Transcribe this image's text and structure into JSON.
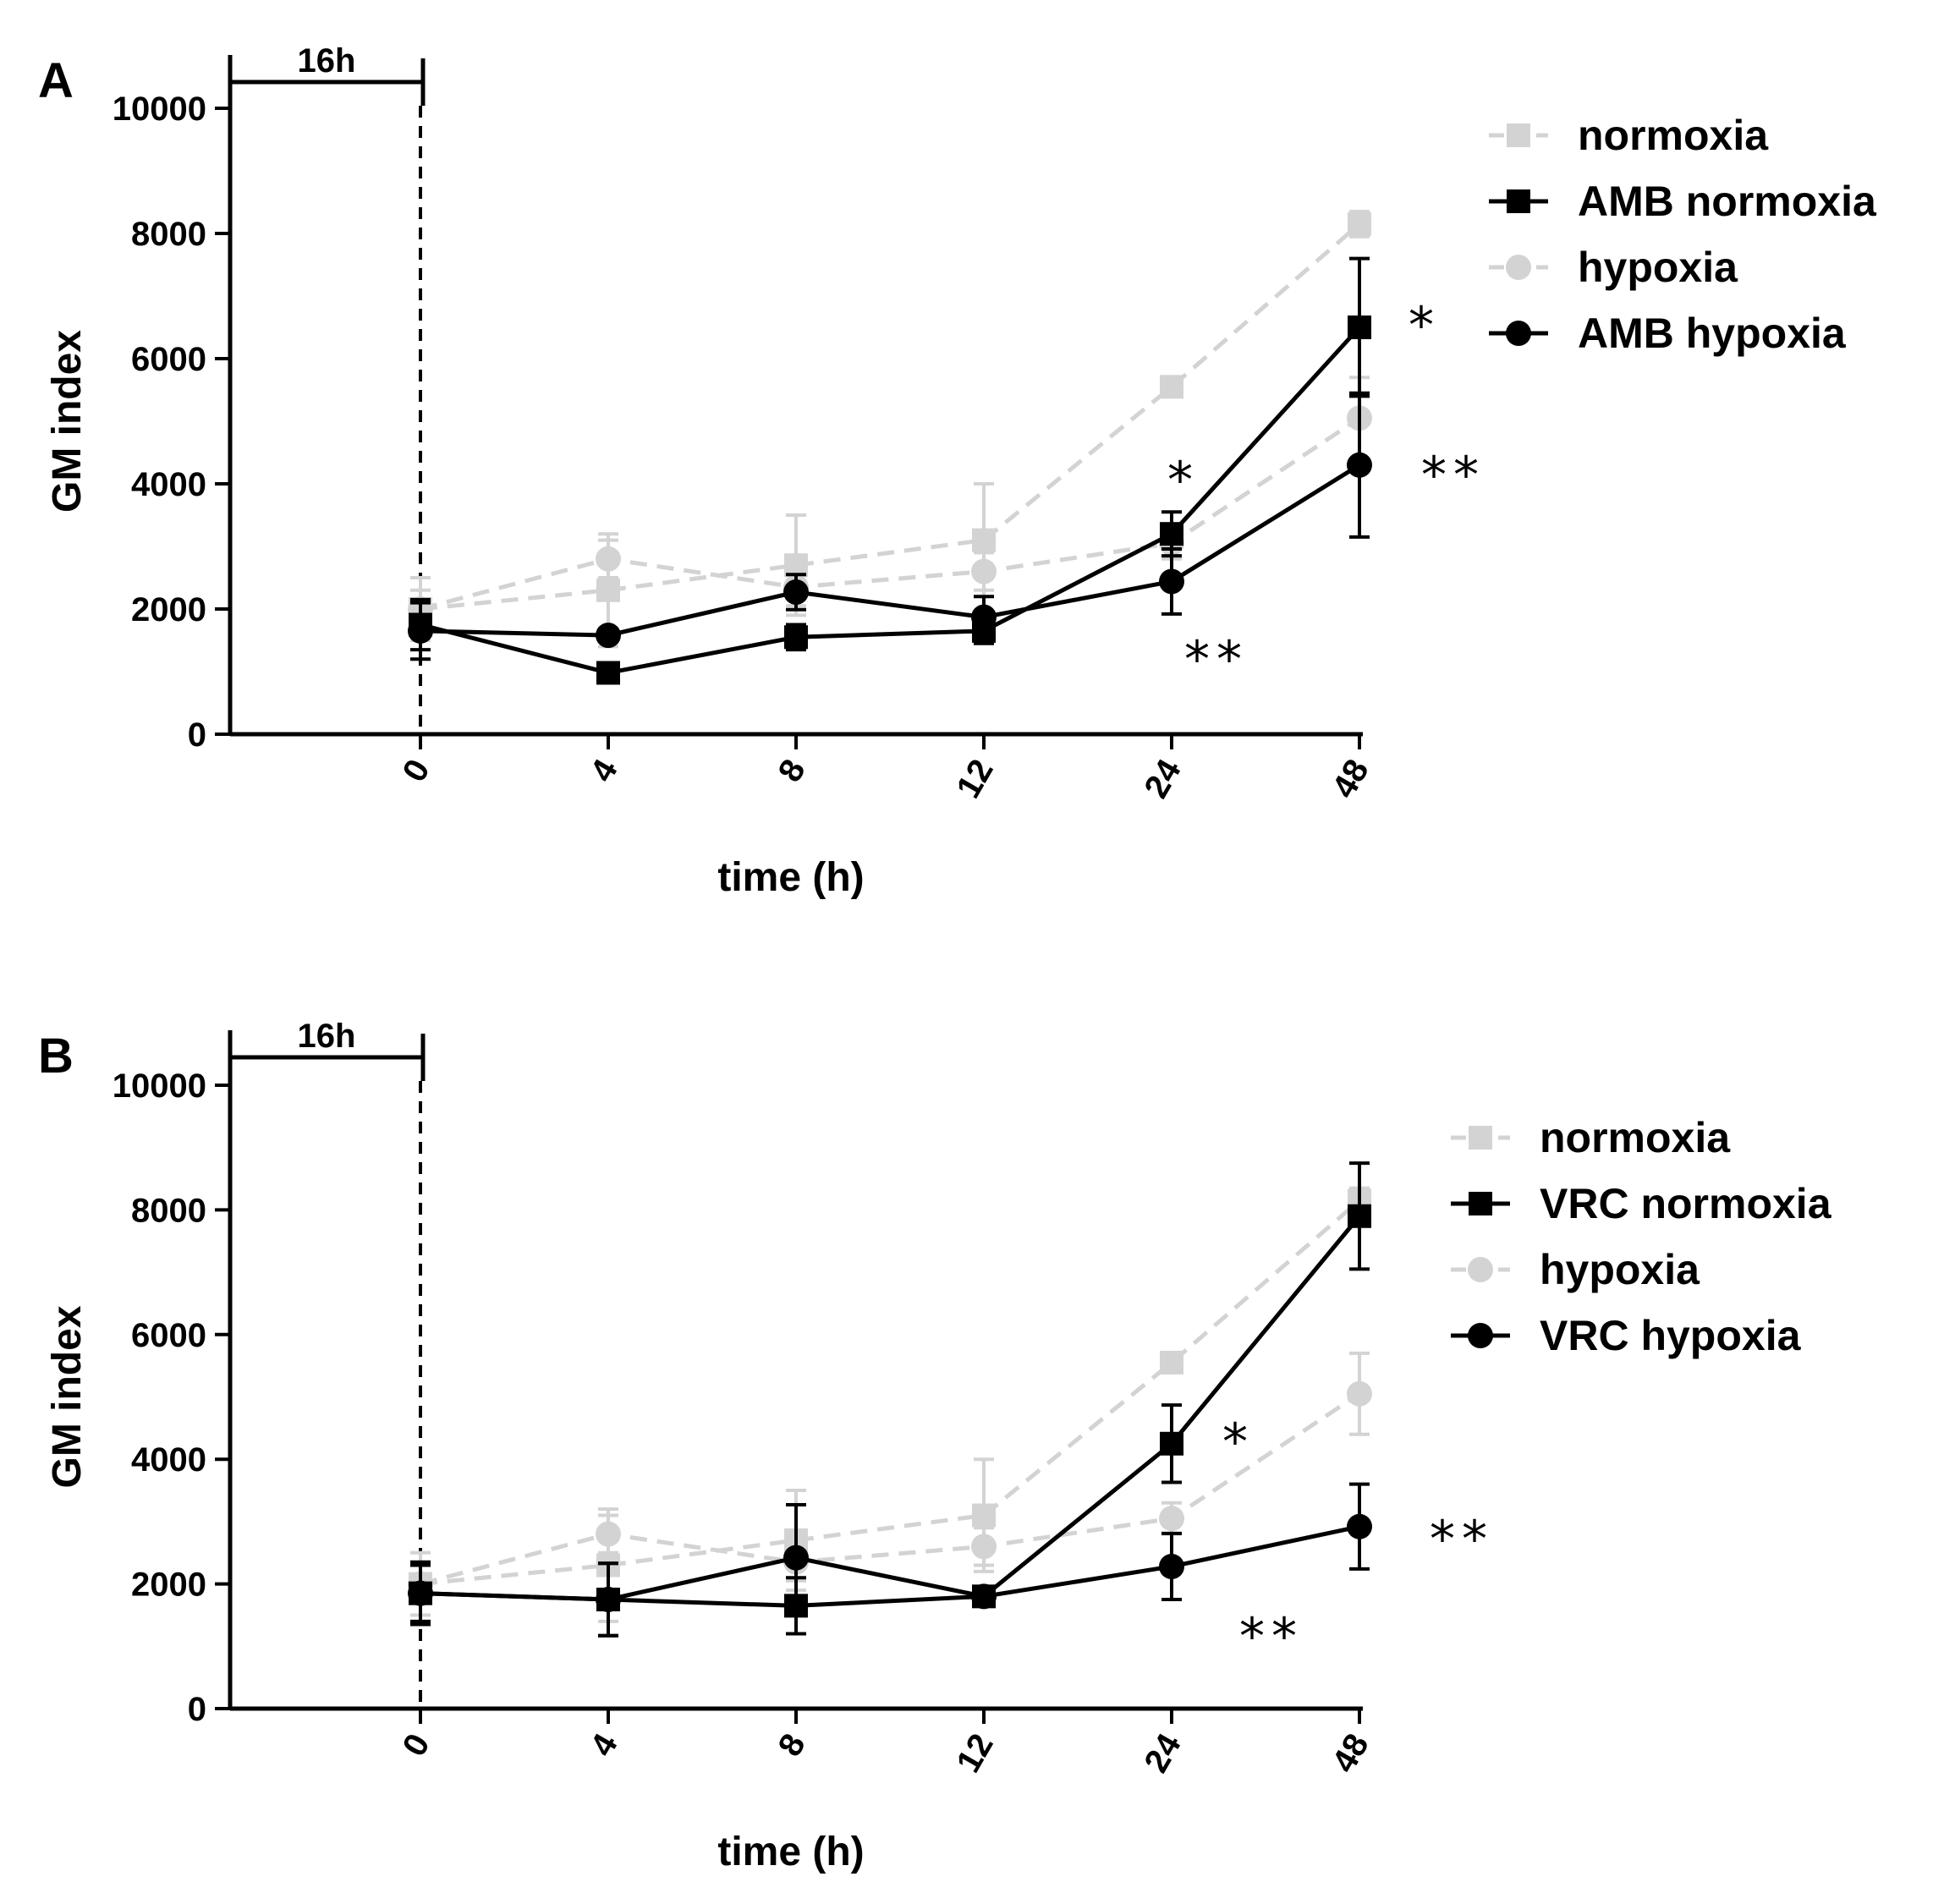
{
  "chart_data": [
    {
      "panel": "A",
      "type": "line",
      "ylabel": "GM index",
      "xlabel": "time (h)",
      "categories": [
        "0",
        "4",
        "8",
        "12",
        "24",
        "48"
      ],
      "ylim": [
        0,
        10000
      ],
      "yticks": [
        "0",
        "2000",
        "4000",
        "6000",
        "8000",
        "10000"
      ],
      "bracket_label": "16h",
      "series": [
        {
          "name": "normoxia",
          "style": "light-dashed-square",
          "color": "#d3d3d3",
          "values": [
            2000,
            2300,
            2700,
            3100,
            5550,
            8150
          ],
          "err": [
            500,
            900,
            800,
            900,
            150,
            200
          ]
        },
        {
          "name": "AMB normoxia",
          "style": "solid-square",
          "color": "#000000",
          "values": [
            1750,
            980,
            1550,
            1650,
            3200,
            6500
          ],
          "err": [
            400,
            120,
            200,
            200,
            350,
            1100
          ]
        },
        {
          "name": "hypoxia",
          "style": "light-dashed-circle",
          "color": "#d3d3d3",
          "values": [
            2000,
            2800,
            2350,
            2600,
            3050,
            5050
          ],
          "err": [
            300,
            300,
            300,
            300,
            250,
            650
          ]
        },
        {
          "name": "AMB hypoxia",
          "style": "solid-circle",
          "color": "#000000",
          "values": [
            1650,
            1580,
            2270,
            1870,
            2440,
            4300
          ],
          "err": [
            450,
            100,
            280,
            330,
            520,
            1150
          ]
        }
      ],
      "annotations": [
        {
          "text": "*",
          "near": "AMB normoxia at 48"
        },
        {
          "text": "*",
          "near": "AMB normoxia at 24"
        },
        {
          "text": "**",
          "near": "AMB hypoxia at 48"
        },
        {
          "text": "**",
          "near": "AMB hypoxia at 24"
        }
      ]
    },
    {
      "panel": "B",
      "type": "line",
      "ylabel": "GM index",
      "xlabel": "time (h)",
      "categories": [
        "0",
        "4",
        "8",
        "12",
        "24",
        "48"
      ],
      "ylim": [
        0,
        10000
      ],
      "yticks": [
        "0",
        "2000",
        "4000",
        "6000",
        "8000",
        "10000"
      ],
      "bracket_label": "16h",
      "series": [
        {
          "name": "normoxia",
          "style": "light-dashed-square",
          "color": "#d3d3d3",
          "values": [
            2000,
            2300,
            2700,
            3100,
            5550,
            8150
          ],
          "err": [
            500,
            900,
            800,
            900,
            150,
            200
          ]
        },
        {
          "name": "VRC normoxia",
          "style": "solid-square",
          "color": "#000000",
          "values": [
            1850,
            1750,
            1650,
            1800,
            4250,
            7900
          ],
          "err": [
            450,
            580,
            450,
            80,
            620,
            850
          ]
        },
        {
          "name": "hypoxia",
          "style": "light-dashed-circle",
          "color": "#d3d3d3",
          "values": [
            2000,
            2800,
            2350,
            2600,
            3050,
            5050
          ],
          "err": [
            300,
            300,
            300,
            300,
            250,
            650
          ]
        },
        {
          "name": "VRC hypoxia",
          "style": "solid-circle",
          "color": "#000000",
          "values": [
            1850,
            1750,
            2420,
            1800,
            2280,
            2920
          ],
          "err": [
            500,
            580,
            850,
            80,
            530,
            680
          ]
        }
      ],
      "annotations": [
        {
          "text": "*",
          "near": "VRC normoxia at 24"
        },
        {
          "text": "**",
          "near": "VRC hypoxia at 48"
        },
        {
          "text": "**",
          "near": "VRC hypoxia at 24"
        }
      ]
    }
  ]
}
